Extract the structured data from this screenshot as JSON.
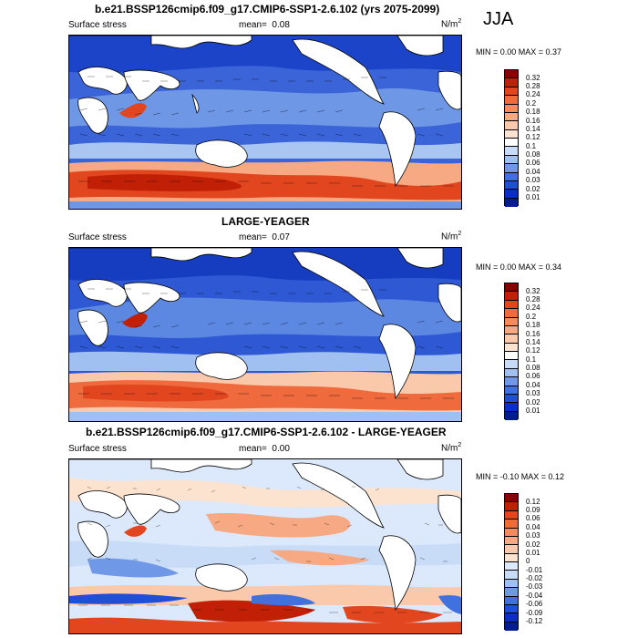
{
  "season": "JJA",
  "panels": [
    {
      "id": "p1",
      "title": "b.e21.BSSP126cmip6.f09_g17.CMIP6-SSP1-2.6.102 (yrs 2075-2099)",
      "left_label": "Surface stress",
      "mean_label": "mean=",
      "mean_value": "0.08",
      "unit_base": "N/m",
      "unit_exp": "2",
      "minmax": "MIN =  0.00 MAX =  0.37",
      "colorbar": {
        "ticks": [
          "0.32",
          "0.28",
          "0.24",
          "0.2",
          "0.18",
          "0.16",
          "0.14",
          "0.12",
          "0.1",
          "0.08",
          "0.06",
          "0.04",
          "0.03",
          "0.02",
          "0.01"
        ],
        "colors": [
          "#8a0000",
          "#c11f06",
          "#e2461f",
          "#ef6a3d",
          "#f48a5f",
          "#f7a983",
          "#fac8aa",
          "#fbe3d0",
          "#ffffff",
          "#c9dcf7",
          "#9fc0f0",
          "#6f99e6",
          "#4170df",
          "#1f4ed7",
          "#0a2fc2",
          "#011c8f"
        ]
      }
    },
    {
      "id": "p2",
      "title": "LARGE-YEAGER",
      "left_label": "Surface stress",
      "mean_label": "mean=",
      "mean_value": "0.07",
      "unit_base": "N/m",
      "unit_exp": "2",
      "minmax": "MIN =  0.00 MAX =  0.34",
      "colorbar": {
        "ticks": [
          "0.32",
          "0.28",
          "0.24",
          "0.2",
          "0.18",
          "0.16",
          "0.14",
          "0.12",
          "0.1",
          "0.08",
          "0.06",
          "0.04",
          "0.03",
          "0.02",
          "0.01"
        ],
        "colors": [
          "#8a0000",
          "#c11f06",
          "#e2461f",
          "#ef6a3d",
          "#f48a5f",
          "#f7a983",
          "#fac8aa",
          "#fbe3d0",
          "#ffffff",
          "#c9dcf7",
          "#9fc0f0",
          "#6f99e6",
          "#4170df",
          "#1f4ed7",
          "#0a2fc2",
          "#011c8f"
        ]
      }
    },
    {
      "id": "p3",
      "title": "b.e21.BSSP126cmip6.f09_g17.CMIP6-SSP1-2.6.102 - LARGE-YEAGER",
      "left_label": "Surface stress",
      "mean_label": "mean=",
      "mean_value": "0.00",
      "unit_base": "N/m",
      "unit_exp": "2",
      "minmax": "MIN = -0.10 MAX =  0.12",
      "colorbar": {
        "ticks": [
          "0.12",
          "0.09",
          "0.06",
          "0.04",
          "0.03",
          "0.02",
          "0.01",
          "0",
          "-0.01",
          "-0.02",
          "-0.03",
          "-0.04",
          "-0.06",
          "-0.09",
          "-0.12"
        ],
        "colors": [
          "#8a0000",
          "#c11f06",
          "#e2461f",
          "#ef6a3d",
          "#f48a5f",
          "#f7a983",
          "#fac8aa",
          "#fbe3d0",
          "#dce8fb",
          "#c9dcf7",
          "#9fc0f0",
          "#6f99e6",
          "#4170df",
          "#1f4ed7",
          "#0a2fc2",
          "#011c8f"
        ]
      }
    }
  ]
}
